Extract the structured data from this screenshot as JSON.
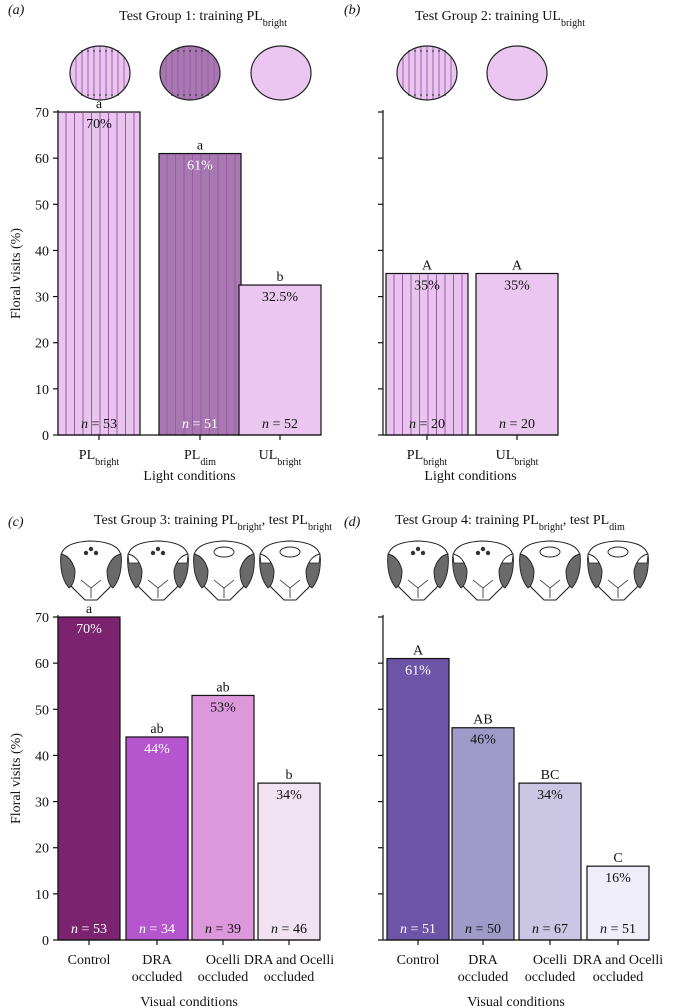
{
  "y_axis_label": "Floral visits (%)",
  "colors": {
    "pl_bright": "#e8c4ef",
    "pl_dim": "#a878b0",
    "ul_bright": "#ebc6f1",
    "stripe": "#9a5aa6",
    "c_control": "#7c2370",
    "c_dra": "#b656cf",
    "c_ocelli": "#dc98db",
    "c_both": "#f0e2f1",
    "d_control": "#6c54a6",
    "d_dra": "#9f9ac8",
    "d_ocelli": "#cac6e4",
    "d_both": "#efeef8",
    "eye_dark": "#6a6a6a"
  },
  "chart_data": [
    {
      "type": "bar",
      "panel": "(a)",
      "title": "Test Group 1: training PL",
      "title_sub": "bright",
      "xlabel": "Light conditions",
      "ylabel": "Floral visits (%)",
      "ylim": [
        0,
        70
      ],
      "yticks": [
        "0",
        "10",
        "20",
        "30",
        "40",
        "50",
        "60",
        "70"
      ],
      "categories": [
        {
          "main": "PL",
          "sub": "bright"
        },
        {
          "main": "PL",
          "sub": "dim"
        },
        {
          "main": "UL",
          "sub": "bright"
        }
      ],
      "values": [
        70,
        61,
        32.5
      ],
      "value_labels": [
        "70%",
        "61%",
        "32.5%"
      ],
      "letters": [
        "a",
        "a",
        "b"
      ],
      "n_labels": [
        "n = 53",
        "n = 51",
        "n = 52"
      ]
    },
    {
      "type": "bar",
      "panel": "(b)",
      "title": "Test Group 2: training UL",
      "title_sub": "bright",
      "xlabel": "Light conditions",
      "ylim": [
        0,
        70
      ],
      "categories": [
        {
          "main": "PL",
          "sub": "bright"
        },
        {
          "main": "UL",
          "sub": "bright"
        }
      ],
      "values": [
        35,
        35
      ],
      "value_labels": [
        "35%",
        "35%"
      ],
      "letters": [
        "A",
        "A"
      ],
      "n_labels": [
        "n = 20",
        "n = 20"
      ]
    },
    {
      "type": "bar",
      "panel": "(c)",
      "title": "Test Group 3: training PL",
      "title_sub1": "bright",
      "title_mid": ", test PL",
      "title_sub2": "bright",
      "xlabel": "Visual conditions",
      "ylabel": "Floral visits (%)",
      "ylim": [
        0,
        70
      ],
      "yticks": [
        "0",
        "10",
        "20",
        "30",
        "40",
        "50",
        "60",
        "70"
      ],
      "categories": [
        {
          "line1": "Control",
          "line2": ""
        },
        {
          "line1": "DRA",
          "line2": "occluded"
        },
        {
          "line1": "Ocelli",
          "line2": "occluded"
        },
        {
          "line1": "DRA and Ocelli",
          "line2": "occluded"
        }
      ],
      "values": [
        70,
        44,
        53,
        34
      ],
      "value_labels": [
        "70%",
        "44%",
        "53%",
        "34%"
      ],
      "letters": [
        "a",
        "ab",
        "ab",
        "b"
      ],
      "n_labels": [
        "n = 53",
        "n = 34",
        "n = 39",
        "n = 46"
      ]
    },
    {
      "type": "bar",
      "panel": "(d)",
      "title": "Test Group 4: training PL",
      "title_sub1": "bright",
      "title_mid": ", test PL",
      "title_sub2": "dim",
      "xlabel": "Visual conditions",
      "ylim": [
        0,
        70
      ],
      "categories": [
        {
          "line1": "Control",
          "line2": ""
        },
        {
          "line1": "DRA",
          "line2": "occluded"
        },
        {
          "line1": "Ocelli",
          "line2": "occluded"
        },
        {
          "line1": "DRA and Ocelli",
          "line2": "occluded"
        }
      ],
      "values": [
        61,
        46,
        34,
        16
      ],
      "value_labels": [
        "61%",
        "46%",
        "34%",
        "16%"
      ],
      "letters": [
        "A",
        "AB",
        "BC",
        "C"
      ],
      "n_labels": [
        "n = 51",
        "n = 50",
        "n = 67",
        "n = 51"
      ]
    }
  ]
}
